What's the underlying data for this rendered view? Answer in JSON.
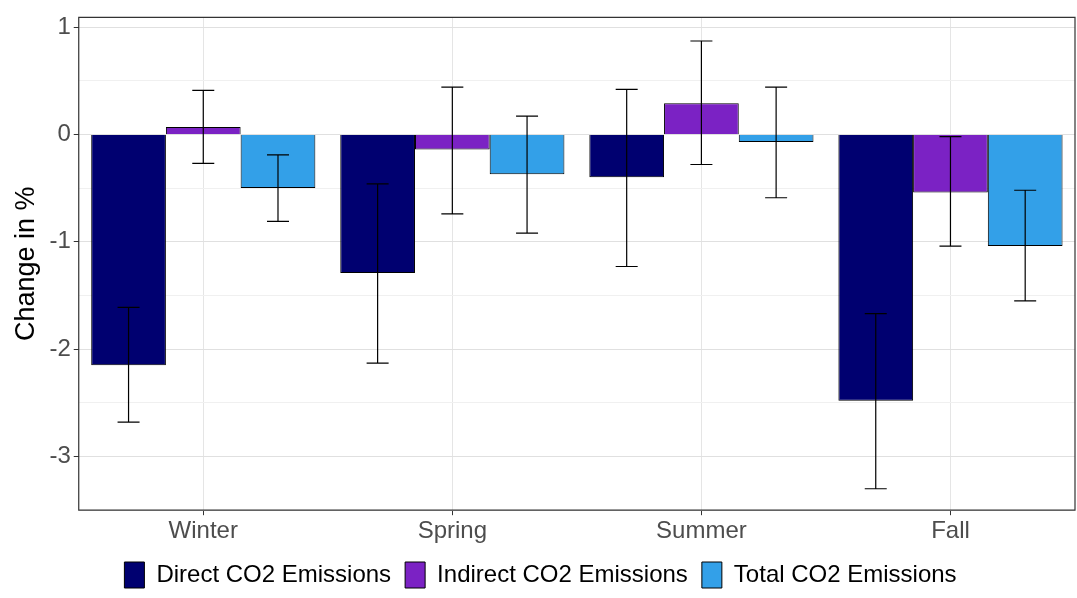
{
  "chart_data": {
    "type": "bar",
    "ylabel": "Change in %",
    "categories": [
      "Winter",
      "Spring",
      "Summer",
      "Fall"
    ],
    "series": [
      {
        "name": "Direct CO2 Emissions",
        "color": "#000070",
        "values": [
          -2.15,
          -1.29,
          -0.4,
          -2.48
        ],
        "errors": [
          [
            -2.68,
            -1.61
          ],
          [
            -2.13,
            -0.46
          ],
          [
            -1.23,
            0.42
          ],
          [
            -3.3,
            -1.67
          ]
        ]
      },
      {
        "name": "Indirect CO2 Emissions",
        "color": "#7b22c4",
        "values": [
          0.07,
          -0.14,
          0.29,
          -0.54
        ],
        "errors": [
          [
            -0.27,
            0.41
          ],
          [
            -0.74,
            0.44
          ],
          [
            -0.28,
            0.87
          ],
          [
            -1.04,
            -0.02
          ]
        ]
      },
      {
        "name": "Total CO2 Emissions",
        "color": "#33a0e8",
        "values": [
          -0.5,
          -0.37,
          -0.07,
          -1.04
        ],
        "errors": [
          [
            -0.81,
            -0.19
          ],
          [
            -0.92,
            0.17
          ],
          [
            -0.59,
            0.44
          ],
          [
            -1.55,
            -0.52
          ]
        ]
      }
    ],
    "ylim": [
      -3.5,
      1.09
    ],
    "yticks": [
      {
        "value": -3.5,
        "label": null
      },
      -3,
      {
        "value": -2.5,
        "label": null
      },
      -2,
      {
        "value": -1.5,
        "label": null
      },
      -1,
      {
        "value": -0.5,
        "label": null
      },
      0,
      {
        "value": 0.5,
        "label": null
      },
      1
    ],
    "grid": true,
    "legend": "bottom"
  }
}
